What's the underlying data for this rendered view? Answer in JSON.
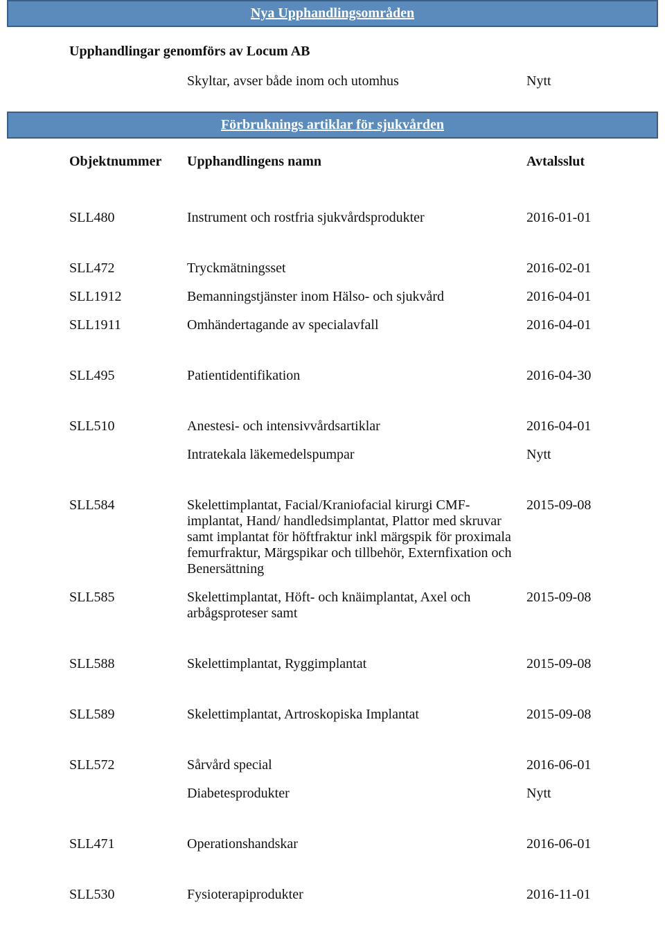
{
  "style": {
    "banner_bg": "#5b8bbd",
    "banner_border": "#3b5e84",
    "banner_text": "#ffffff",
    "body_text": "#111111",
    "font_size_banner": 20,
    "font_size_body": 20
  },
  "banners": {
    "nya": "Nya Upphandlingsområden",
    "forbruk": "Förbruknings artiklar för sjukvården"
  },
  "section1": {
    "title": "Upphandlingar genomförs av Locum AB",
    "row": {
      "name": "Skyltar, avser både inom och utomhus",
      "date": "Nytt"
    }
  },
  "table_header": {
    "obj": "Objektnummer",
    "name": "Upphandlingens namn",
    "date": "Avtalsslut"
  },
  "rows": [
    {
      "obj": "SLL480",
      "name": "Instrument och rostfria sjukvårdsprodukter",
      "date": "2016-01-01"
    },
    {
      "obj": "SLL472",
      "name": "Tryckmätningsset",
      "date": "2016-02-01"
    },
    {
      "obj": "SLL1912",
      "name": "Bemanningstjänster inom Hälso- och sjukvård",
      "date": "2016-04-01"
    },
    {
      "obj": "SLL1911",
      "name": "Omhändertagande av specialavfall",
      "date": "2016-04-01"
    },
    {
      "obj": "SLL495",
      "name": "Patientidentifikation",
      "date": "2016-04-30"
    },
    {
      "obj": "SLL510",
      "name": "Anestesi- och intensivvårdsartiklar",
      "date": "2016-04-01"
    },
    {
      "obj": "",
      "name": "Intratekala läkemedelspumpar",
      "date": "Nytt"
    },
    {
      "obj": "SLL584",
      "name": "Skelettimplantat, Facial/Kraniofacial kirurgi CMF-implantat, Hand/ handledsimplantat, Plattor med skruvar samt implantat för höftfraktur inkl märgspik för proximala femurfraktur, Märgspikar och tillbehör, Externfixation och Benersättning",
      "date": "2015-09-08"
    },
    {
      "obj": "SLL585",
      "name": "Skelettimplantat, Höft- och knäimplantat, Axel och arbågsproteser samt",
      "date": "2015-09-08"
    },
    {
      "obj": "SLL588",
      "name": "Skelettimplantat, Ryggimplantat",
      "date": "2015-09-08"
    },
    {
      "obj": "SLL589",
      "name": "Skelettimplantat, Artroskopiska Implantat",
      "date": "2015-09-08"
    },
    {
      "obj": "SLL572",
      "name": "Sårvård special",
      "date": "2016-06-01"
    },
    {
      "obj": "",
      "name": "Diabetesprodukter",
      "date": "Nytt"
    },
    {
      "obj": "SLL471",
      "name": "Operationshandskar",
      "date": "2016-06-01"
    },
    {
      "obj": "SLL530",
      "name": "Fysioterapiprodukter",
      "date": "2016-11-01"
    }
  ],
  "gaps_after_index": [
    0,
    3,
    4,
    6,
    8,
    9,
    10,
    12,
    13
  ]
}
